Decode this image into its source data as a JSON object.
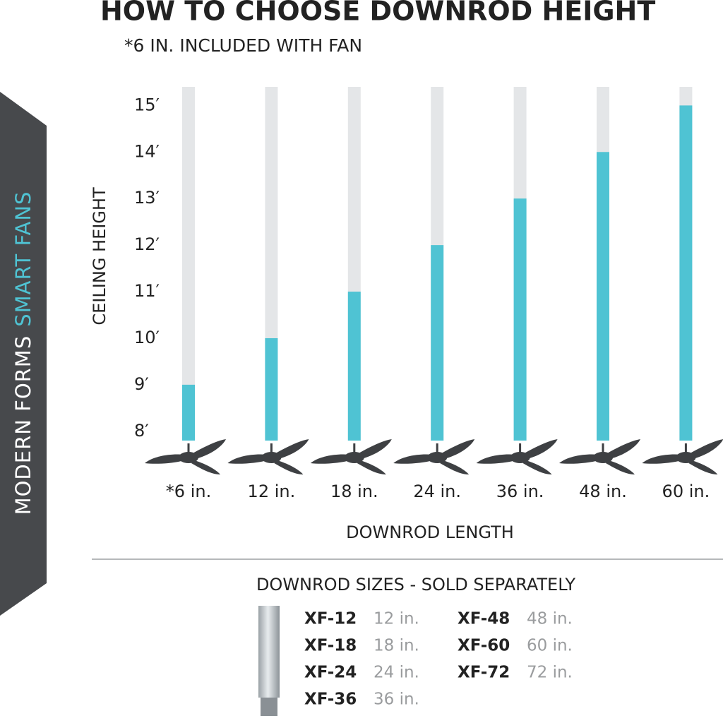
{
  "side_banner": {
    "brand": "MODERN FORMS",
    "product": "SMART FANS"
  },
  "chart_data": {
    "type": "bar",
    "title": "HOW TO CHOOSE DOWNROD HEIGHT",
    "subtitle": "*6 IN. INCLUDED WITH FAN",
    "x_label": "DOWNROD LENGTH",
    "y_label": "CEILING HEIGHT",
    "categories": [
      "*6 in.",
      "12 in.",
      "18 in.",
      "24 in.",
      "36 in.",
      "48 in.",
      "60 in."
    ],
    "values": [
      9,
      10,
      11,
      12,
      13,
      14,
      15
    ],
    "color": "#4fc3d3",
    "track_color": "#e4e6e8",
    "ylim": [
      7.8,
      15.4
    ],
    "yticks": [
      {
        "value": 8,
        "label": "8′"
      },
      {
        "value": 9,
        "label": "9′"
      },
      {
        "value": 10,
        "label": "10′"
      },
      {
        "value": 11,
        "label": "11′"
      },
      {
        "value": 12,
        "label": "12′"
      },
      {
        "value": 13,
        "label": "13′"
      },
      {
        "value": 14,
        "label": "14′"
      },
      {
        "value": 15,
        "label": "15′"
      }
    ]
  },
  "sizes": {
    "title": "DOWNROD SIZES - SOLD SEPARATELY",
    "items": [
      {
        "code": "XF-12",
        "length": "12 in."
      },
      {
        "code": "XF-18",
        "length": "18 in."
      },
      {
        "code": "XF-24",
        "length": "24 in."
      },
      {
        "code": "XF-36",
        "length": "36 in."
      },
      {
        "code": "XF-48",
        "length": "48 in."
      },
      {
        "code": "XF-60",
        "length": "60 in."
      },
      {
        "code": "XF-72",
        "length": "72 in."
      }
    ]
  }
}
